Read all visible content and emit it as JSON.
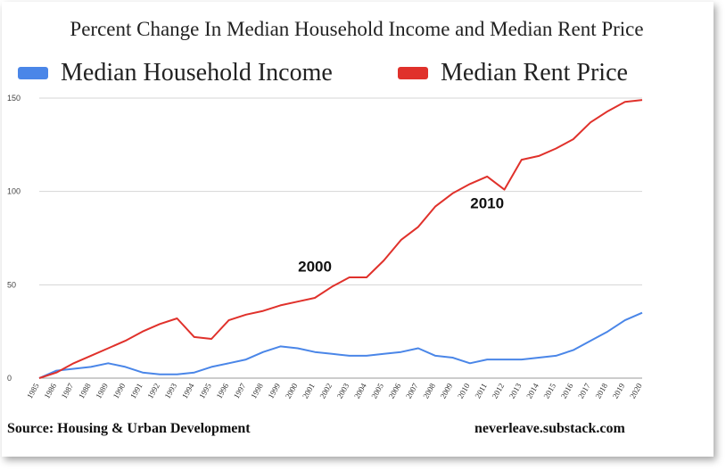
{
  "chart_data": {
    "type": "line",
    "title": "Percent Change In Median Household Income and Median Rent Price",
    "x": [
      "1985",
      "1986",
      "1987",
      "1988",
      "1989",
      "1990",
      "1991",
      "1992",
      "1993",
      "1994",
      "1995",
      "1996",
      "1997",
      "1998",
      "1999",
      "2000",
      "2001",
      "2002",
      "2003",
      "2004",
      "2005",
      "2006",
      "2007",
      "2008",
      "2009",
      "2010",
      "2011",
      "2012",
      "2013",
      "2014",
      "2015",
      "2016",
      "2017",
      "2018",
      "2019",
      "2020"
    ],
    "series": [
      {
        "name": "Median Household Income",
        "color": "#4a86e8",
        "values": [
          0,
          4,
          5,
          6,
          8,
          6,
          3,
          2,
          2,
          3,
          6,
          8,
          10,
          14,
          17,
          16,
          14,
          13,
          12,
          12,
          13,
          14,
          16,
          12,
          11,
          8,
          10,
          10,
          10,
          11,
          12,
          15,
          20,
          25,
          31,
          35
        ]
      },
      {
        "name": "Median Rent Price",
        "color": "#e0312b",
        "values": [
          0,
          3,
          8,
          12,
          16,
          20,
          25,
          29,
          32,
          22,
          21,
          31,
          34,
          36,
          39,
          41,
          43,
          49,
          54,
          54,
          63,
          74,
          81,
          92,
          99,
          104,
          108,
          101,
          117,
          119,
          123,
          128,
          137,
          143,
          148,
          149
        ]
      }
    ],
    "yticks": [
      "0",
      "50",
      "100",
      "150"
    ],
    "ylim": [
      0,
      150
    ],
    "grid": true,
    "legend_position": "top",
    "annotations": [
      {
        "label": "2000",
        "x": "2001",
        "y": 57
      },
      {
        "label": "2010",
        "x": "2011",
        "y": 91
      }
    ]
  },
  "footer": {
    "source": "Source: Housing & Urban Development",
    "site": "neverleave.substack.com"
  }
}
